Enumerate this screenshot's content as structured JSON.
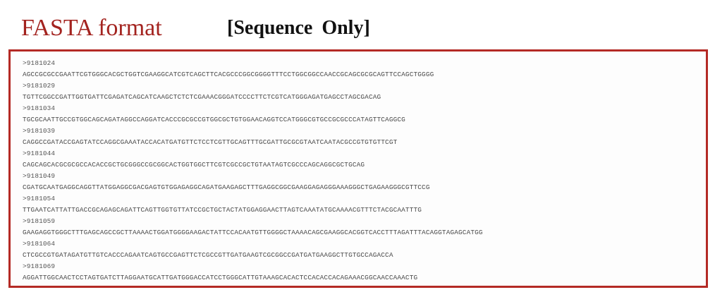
{
  "title": "FASTA format",
  "subtitle": "[Sequence  Only]",
  "records": [
    {
      "header": ">9181024",
      "sequence": "AGCCGCGCCGAATTCGTGGGCACGCTGGTCGAAGGCATCGTCAGCTTCACGCCCGGCGGGGTTTCCTGGCGGCCAACCGCAGCGCGCAGTTCCAGCTGGGG"
    },
    {
      "header": ">9181029",
      "sequence": "TGTTCGGCCGATTGGTGATTCGAGATCAGCATCAAGCTCTCTCGAAACGGGATCCCCTTCTCGTCATGGGAGATGAGCCTAGCGACAG"
    },
    {
      "header": ">9181034",
      "sequence": "TGCGCAATTGCCGTGGCAGCAGATAGGCCAGGATCACCCGCGCCGTGGCGCTGTGGAACAGGTCCATGGGCGTGCCGCGCCCATAGTTCAGGCG"
    },
    {
      "header": ">9181039",
      "sequence": "CAGGCCGATACCGAGTATCCAGGCGAAATACCACATGATGTTCTCCTCGTTGCAGTTTGCGATTGCGCGTAATCAATACGCCGTGTGTTCGT"
    },
    {
      "header": ">9181044",
      "sequence": "CAGCAGCACGCGCGCCACACCGCTGCGGGCCGCGGCACTGGTGGCTTCGTCGCCGCTGTAATAGTCGCCCAGCAGGCGCTGCAG"
    },
    {
      "header": ">9181049",
      "sequence": "CGATGCAATGAGGCAGGTTATGGAGGCGACGAGTGTGGAGAGGCAGATGAAGAGCTTTGAGGCGGCGAAGGAGAGGGAAAGGGCTGAGAAGGGCGTTCCG"
    },
    {
      "header": ">9181054",
      "sequence": "TTGAATCATTATTGACCGCAGAGCAGATTCAGTTGGTGTTATCCGCTGCTACTATGGAGGAACTTAGTCAAATATGCAAAACGTTTCTACGCAATTTG"
    },
    {
      "header": ">9181059",
      "sequence": "GAAGAGGTGGGCTTTGAGCAGCCGCTTAAAACTGGATGGGGAAGACTATTCCACAATGTTGGGGCTAAAACAGCGAAGGCACGGTCACCTTTAGATTTACAGGTAGAGCATGG"
    },
    {
      "header": ">9181064",
      "sequence": "CTCGCCGTGATAGATGTTGTCACCCAGAATCAGTGCCGAGTTCTCGCCGTTGATGAAGTCGCGGCCGATGATGAAGGCTTGTGCCAGACCA"
    },
    {
      "header": ">9181069",
      "sequence": "AGGATTGGCAACTCCTAGTGATCTTAGGAATGCATTGATGGGACCATCCTGGGCATTGTAAAGCACACTCCACACCACAGAAACGGCAACCAAACTG"
    }
  ]
}
